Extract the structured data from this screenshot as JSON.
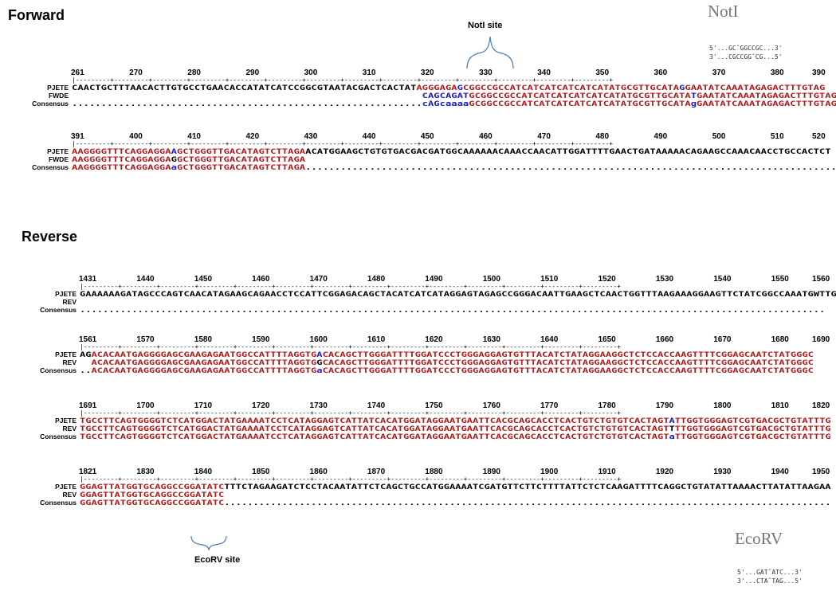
{
  "titles": {
    "forward": "Forward",
    "reverse": "Reverse"
  },
  "sites": {
    "notI_label": "NotI site",
    "ecorv_label": "EcoRV site"
  },
  "enzymes": {
    "notI": {
      "name": "NotI",
      "line1": "5'...GCˇGGCCGC...3'",
      "line2": "3'...CGCCGGˆCG...5'"
    },
    "ecorv": {
      "name": "EcoRV",
      "line1": "5'...GATˇATC...3'",
      "line2": "3'...CTAˆTAG...5'"
    }
  },
  "colors": {
    "match": "#b01818",
    "mismatch": "#1818c8",
    "default": "#000000"
  },
  "blocks": [
    {
      "id": "fwd1",
      "left": true,
      "ruler": [
        "261",
        "270",
        "280",
        "290",
        "300",
        "310",
        "320",
        "330",
        "340",
        "350",
        "360",
        "370",
        "380",
        "390"
      ],
      "rows": [
        {
          "name": "PJETE",
          "segs": [
            [
              "k",
              "CAACTGCTTTAACACTTGTGCCTGAACACCATATCATCCGGCGTAATACGACTCACTAT"
            ],
            [
              "r",
              "AGGGAGA"
            ],
            [
              "b",
              "G"
            ],
            [
              "r",
              "CGGCCGCCATCATCATCATCATCATATGCGTTGCATA"
            ],
            [
              "b",
              "G"
            ],
            [
              "r",
              "GAATATCAAATAGAGACTTTGTAG"
            ]
          ]
        },
        {
          "name": "FWDE",
          "segs": [
            [
              "k",
              "                                                            "
            ],
            [
              "b",
              "CAGCAGAT"
            ],
            [
              "r",
              "GCGGCCGCCATCATCATCATCATCATATGCGTTGCATA"
            ],
            [
              "b",
              "T"
            ],
            [
              "r",
              "GAATATCAAATAGAGACTTTGTAG"
            ]
          ]
        },
        {
          "name": "Consensus",
          "segs": [
            [
              "k",
              "............................................................"
            ],
            [
              "b",
              "cAGcaaaa"
            ],
            [
              "r",
              "GCGGCCGCCATCATCATCATCATCATATGCGTTGCATA"
            ],
            [
              "b",
              "g"
            ],
            [
              "r",
              "GAATATCAAATAGAGACTTTGTAG"
            ]
          ]
        }
      ]
    },
    {
      "id": "fwd2",
      "left": true,
      "ruler": [
        "391",
        "400",
        "410",
        "420",
        "430",
        "440",
        "450",
        "460",
        "470",
        "480",
        "490",
        "500",
        "510",
        "520"
      ],
      "rows": [
        {
          "name": "PJETE",
          "segs": [
            [
              "r",
              "AAGGGGTTTCAGGAGGA"
            ],
            [
              "b",
              "A"
            ],
            [
              "r",
              "GCTGGGTTGACATAGTCTTAGA"
            ],
            [
              "k",
              "ACATGGAAGCTGTGTGACGACGATGGCAAAAAACAAACCAACATTGGATTTTGAACTGATAAAAACAGAAGCCAAACAACCTGCCACTCT"
            ]
          ]
        },
        {
          "name": "FWDE",
          "segs": [
            [
              "r",
              "AAGGGGTTTCAGGAGGA"
            ],
            [
              "k",
              "G"
            ],
            [
              "r",
              "GCTGGGTTGACATAGTCTTAGA"
            ]
          ]
        },
        {
          "name": "Consensus",
          "segs": [
            [
              "r",
              "AAGGGGTTTCAGGAGGA"
            ],
            [
              "b",
              "a"
            ],
            [
              "r",
              "GCTGGGTTGACATAGTCTTAGA"
            ],
            [
              "k",
              "..........................................................................................."
            ]
          ]
        }
      ]
    },
    {
      "id": "rev1",
      "left": false,
      "ruler": [
        "1431",
        "1440",
        "1450",
        "1460",
        "1470",
        "1480",
        "1490",
        "1500",
        "1510",
        "1520",
        "1530",
        "1540",
        "1550",
        "1560"
      ],
      "rows": [
        {
          "name": "PJETE",
          "segs": [
            [
              "k",
              "GAAAAAAGATAGCCCAGTCAACATAGAAGCAGAACCTCCATTCGGAGACAGCTACATCATCATAGGAGTAGAGCCGGGACAATTGAAGCTCAACTGGTTTAAGAAAGGAAGTTCTATCGGCCAAATGWTTG"
            ]
          ]
        },
        {
          "name": "REV",
          "segs": [
            [
              "k",
              " "
            ]
          ]
        },
        {
          "name": "Consensus",
          "segs": [
            [
              "k",
              "................................................................................................................................."
            ]
          ]
        }
      ]
    },
    {
      "id": "rev2",
      "left": false,
      "ruler": [
        "1561",
        "1570",
        "1580",
        "1590",
        "1600",
        "1610",
        "1620",
        "1630",
        "1640",
        "1650",
        "1660",
        "1670",
        "1680",
        "1690"
      ],
      "rows": [
        {
          "name": "PJETE",
          "segs": [
            [
              "k",
              "AG"
            ],
            [
              "r",
              "ACACAATGAGGGGAGCGAAGAGAATGGCCATTTTAGGTG"
            ],
            [
              "b",
              "A"
            ],
            [
              "r",
              "CACAGCTTGGGATTTTGGATCCCTGGGAGGAGTGTTTACATCTATAGGAAGGCTCTCCACCAAGTTTTCGGAGCAATCTATGGGC"
            ]
          ]
        },
        {
          "name": "REV",
          "segs": [
            [
              "k",
              "  "
            ],
            [
              "r",
              "ACACAATGAGGGGAGCGAAGAGAATGGCCATTTTAGGTG"
            ],
            [
              "k",
              "G"
            ],
            [
              "r",
              "CACAGCTTGGGATTTTGGATCCCTGGGAGGAGTGTTTACATCTATAGGAAGGCTCTCCACCAAGTTTTCGGAGCAATCTATGGGC"
            ]
          ]
        },
        {
          "name": "Consensus",
          "segs": [
            [
              "k",
              ".."
            ],
            [
              "r",
              "ACACAATGAGGGGAGCGAAGAGAATGGCCATTTTAGGTG"
            ],
            [
              "b",
              "a"
            ],
            [
              "r",
              "CACAGCTTGGGATTTTGGATCCCTGGGAGGAGTGTTTACATCTATAGGAAGGCTCTCCACCAAGTTTTCGGAGCAATCTATGGGC"
            ]
          ]
        }
      ]
    },
    {
      "id": "rev3",
      "left": false,
      "ruler": [
        "1691",
        "1700",
        "1710",
        "1720",
        "1730",
        "1740",
        "1750",
        "1760",
        "1770",
        "1780",
        "1790",
        "1800",
        "1810",
        "1820"
      ],
      "rows": [
        {
          "name": "PJETE",
          "segs": [
            [
              "r",
              "TGCCTTCAGTGGGGTCTCATGGACTATGAAAATCCTCATAGGAGTCATTATCACATGGATAGGAATGAATTCACGCAGCACCTCACTGTCTGTGTCACTAGT"
            ],
            [
              "b",
              "A"
            ],
            [
              "r",
              "TTGGTGGGAGTCGTGACGCTGTATTTG"
            ]
          ]
        },
        {
          "name": "REV",
          "segs": [
            [
              "r",
              "TGCCTTCAGTGGGGTCTCATGGACTATGAAAATCCTCATAGGAGTCATTATCACATGGATAGGAATGAATTCACGCAGCACCTCACTGTCTGTGTCACTAGT"
            ],
            [
              "k",
              "T"
            ],
            [
              "r",
              "TTGGTGGGAGTCGTGACGCTGTATTTG"
            ]
          ]
        },
        {
          "name": "Consensus",
          "segs": [
            [
              "r",
              "TGCCTTCAGTGGGGTCTCATGGACTATGAAAATCCTCATAGGAGTCATTATCACATGGATAGGAATGAATTCACGCAGCACCTCACTGTCTGTGTCACTAGT"
            ],
            [
              "b",
              "a"
            ],
            [
              "r",
              "TTGGTGGGAGTCGTGACGCTGTATTTG"
            ]
          ]
        }
      ]
    },
    {
      "id": "rev4",
      "left": false,
      "ruler": [
        "1821",
        "1830",
        "1840",
        "1850",
        "1860",
        "1870",
        "1880",
        "1890",
        "1900",
        "1910",
        "1920",
        "1930",
        "1940",
        "1950"
      ],
      "rows": [
        {
          "name": "PJETE",
          "segs": [
            [
              "r",
              "GGAGTTATGGTGCAGGCCGGATATC"
            ],
            [
              "k",
              "TTTCTAGAAGATCTCCTACAATATTCTCAGCTGCCATGGAAAATCGATGTTCTTCTTTTATTCTCTCAAGATTTTCAGGCTGTATATTAAAACTTATATTAAGAA"
            ]
          ]
        },
        {
          "name": "REV",
          "segs": [
            [
              "r",
              "GGAGTTATGGTGCAGGCCGGATATC"
            ]
          ]
        },
        {
          "name": "Consensus",
          "segs": [
            [
              "r",
              "GGAGTTATGGTGCAGGCCGGATATC"
            ],
            [
              "k",
              "........................................................................................................."
            ]
          ]
        }
      ]
    }
  ]
}
